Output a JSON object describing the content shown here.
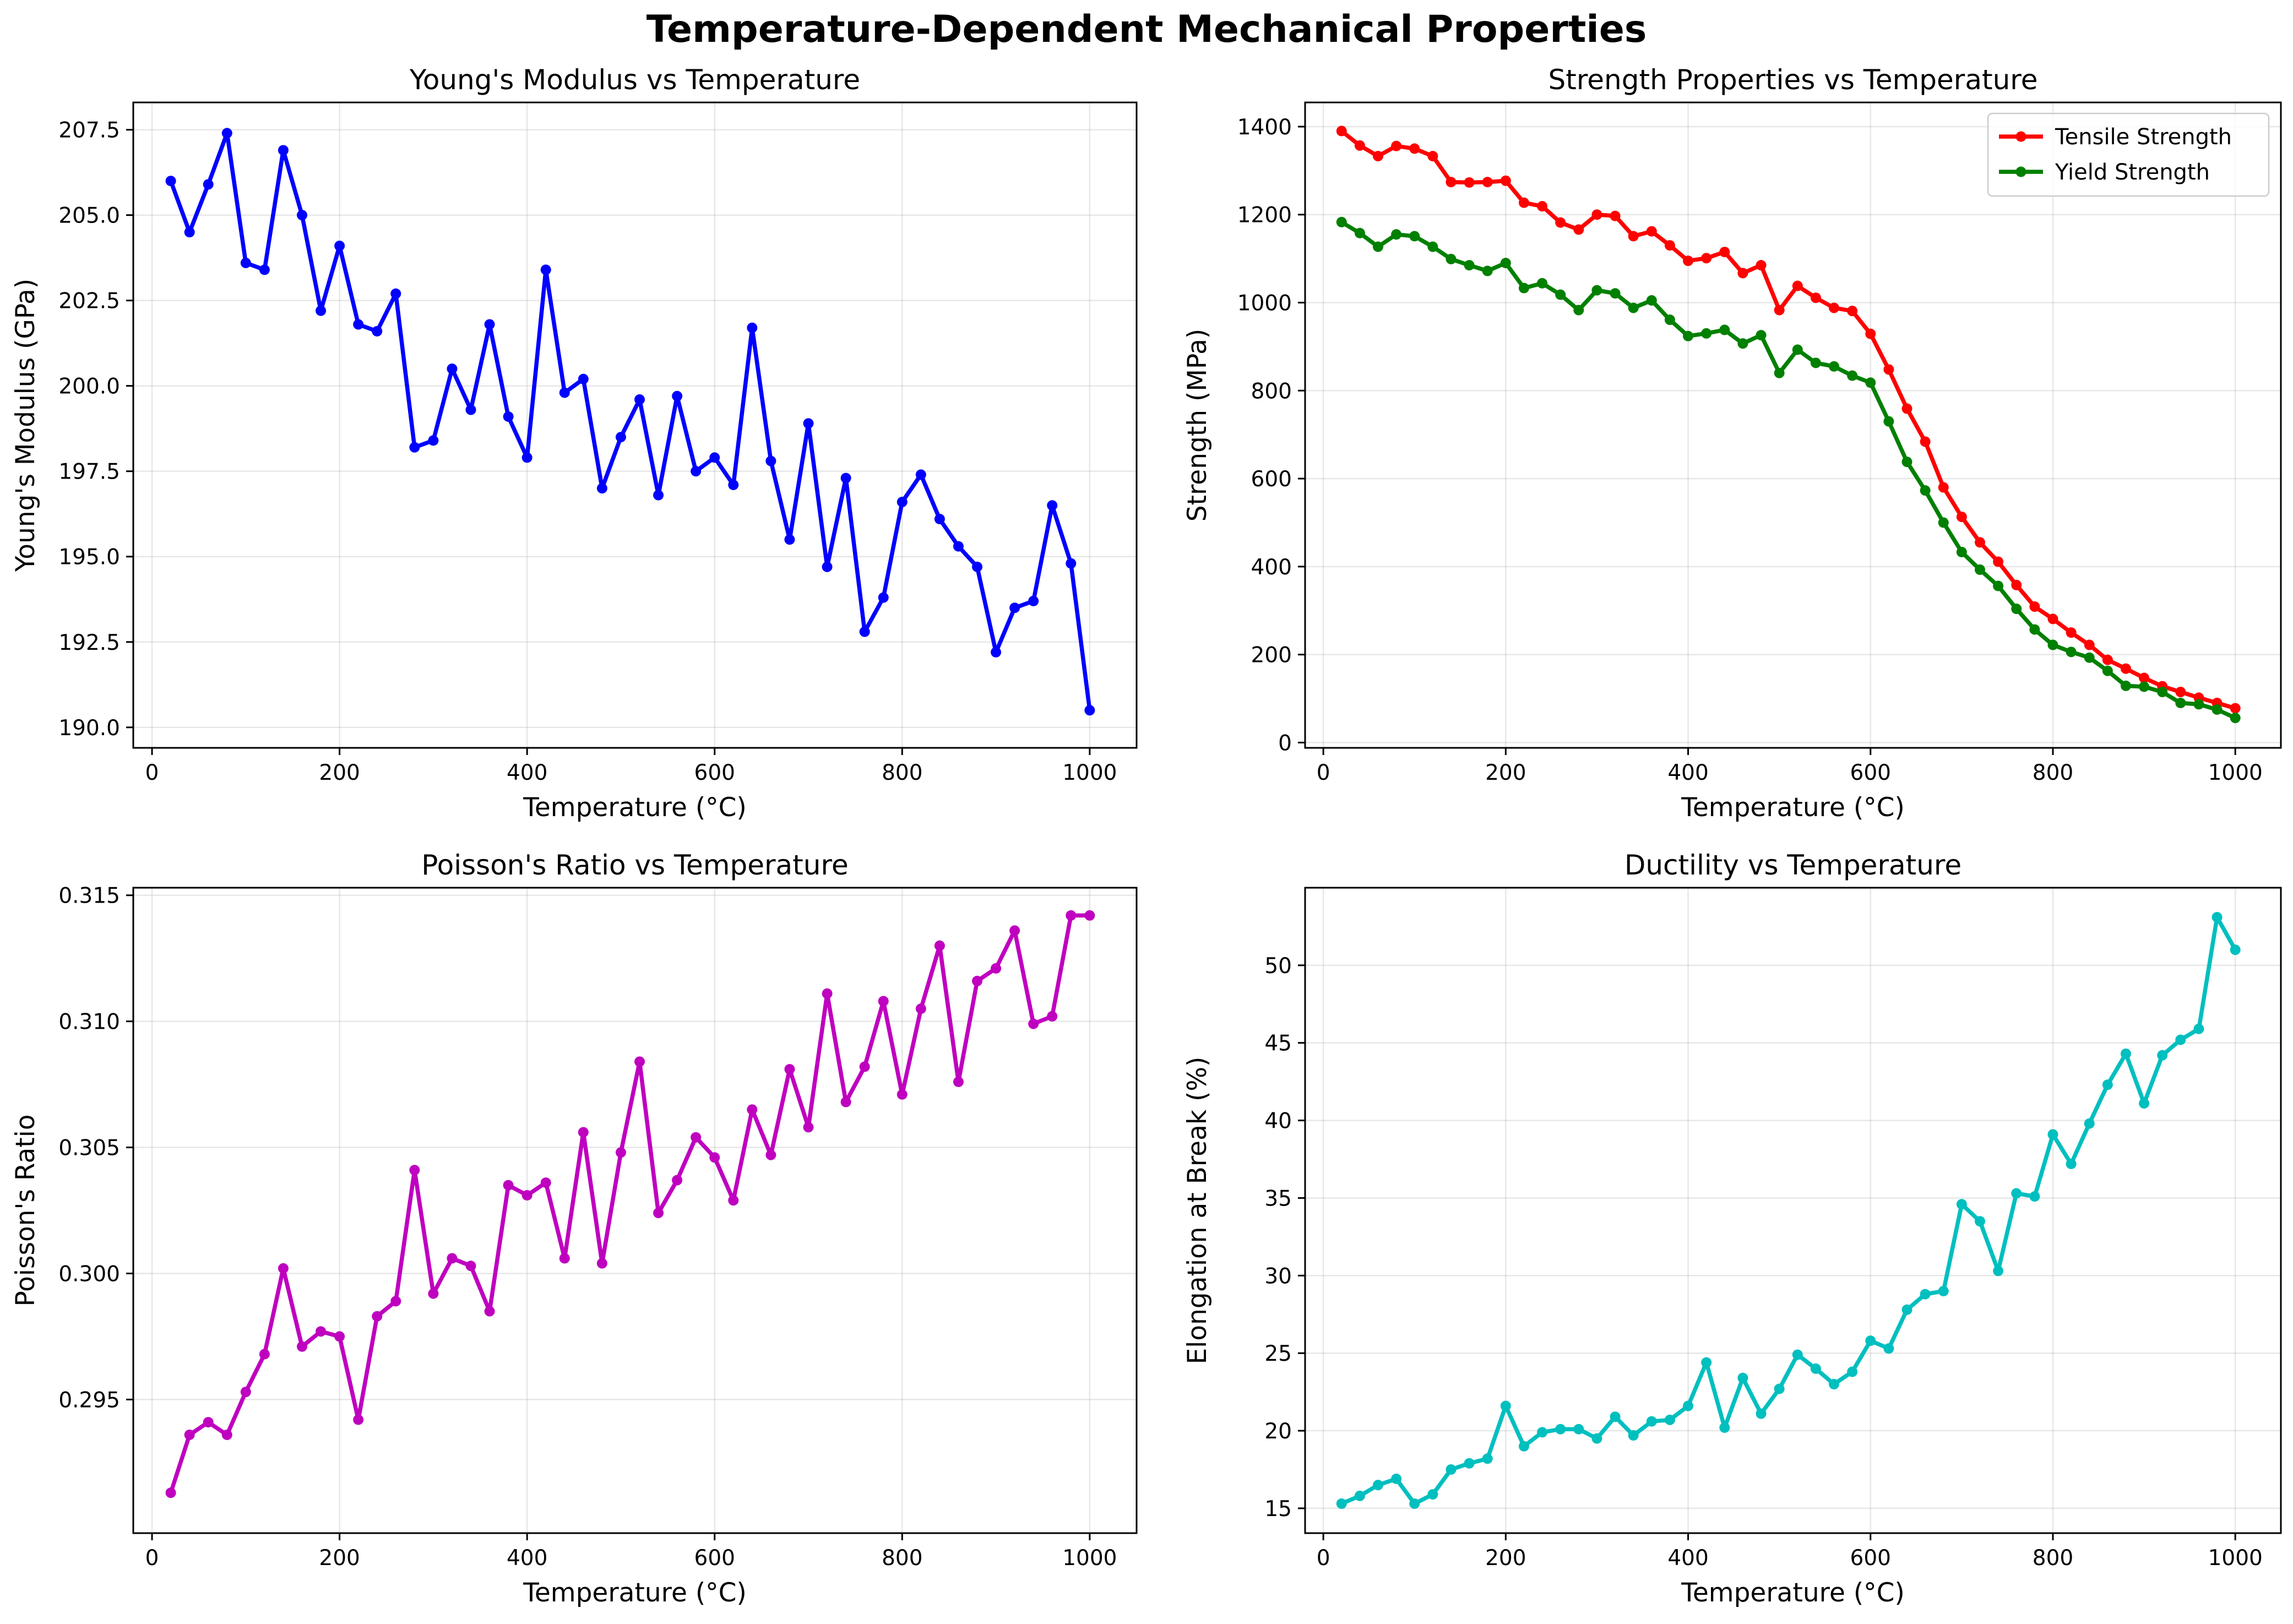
{
  "figure_title": "Temperature-Dependent Mechanical Properties",
  "chart_data": [
    {
      "type": "line",
      "title": "Young's Modulus vs Temperature",
      "xlabel": "Temperature (°C)",
      "ylabel": "Young's Modulus (GPa)",
      "xlim": [
        -20,
        1050
      ],
      "ylim": [
        189.4,
        208.3
      ],
      "xticks": [
        0,
        200,
        400,
        600,
        800,
        1000
      ],
      "yticks": [
        190.0,
        192.5,
        195.0,
        197.5,
        200.0,
        202.5,
        205.0,
        207.5
      ],
      "ytick_labels": [
        "190.0",
        "192.5",
        "195.0",
        "197.5",
        "200.0",
        "202.5",
        "205.0",
        "207.5"
      ],
      "grid": true,
      "legend": "none",
      "x": [
        20,
        40,
        60,
        80,
        100,
        120,
        140,
        160,
        180,
        200,
        220,
        240,
        260,
        280,
        300,
        320,
        340,
        360,
        380,
        400,
        420,
        440,
        460,
        480,
        500,
        520,
        540,
        560,
        580,
        600,
        620,
        640,
        660,
        680,
        700,
        720,
        740,
        760,
        780,
        800,
        820,
        840,
        860,
        880,
        900,
        920,
        940,
        960,
        980,
        1000
      ],
      "series": [
        {
          "color": "#0000ff",
          "values": [
            206.0,
            204.5,
            205.9,
            207.4,
            203.6,
            203.4,
            206.9,
            205.0,
            202.2,
            204.1,
            201.8,
            201.6,
            202.7,
            198.2,
            198.4,
            200.5,
            199.3,
            201.8,
            199.1,
            197.9,
            203.4,
            199.8,
            200.2,
            197.0,
            198.5,
            199.6,
            196.8,
            199.7,
            197.5,
            197.9,
            197.1,
            201.7,
            197.8,
            195.5,
            198.9,
            194.7,
            197.3,
            192.8,
            193.8,
            196.6,
            197.4,
            196.1,
            195.3,
            194.7,
            192.2,
            193.5,
            193.7,
            196.5,
            194.8,
            190.5
          ]
        }
      ]
    },
    {
      "type": "line",
      "title": "Strength Properties vs Temperature",
      "xlabel": "Temperature (°C)",
      "ylabel": "Strength (MPa)",
      "xlim": [
        -20,
        1050
      ],
      "ylim": [
        -12,
        1455
      ],
      "xticks": [
        0,
        200,
        400,
        600,
        800,
        1000
      ],
      "yticks": [
        0,
        200,
        400,
        600,
        800,
        1000,
        1200,
        1400
      ],
      "ytick_labels": [
        "0",
        "200",
        "400",
        "600",
        "800",
        "1000",
        "1200",
        "1400"
      ],
      "grid": true,
      "legend": "top-right",
      "x": [
        20,
        40,
        60,
        80,
        100,
        120,
        140,
        160,
        180,
        200,
        220,
        240,
        260,
        280,
        300,
        320,
        340,
        360,
        380,
        400,
        420,
        440,
        460,
        480,
        500,
        520,
        540,
        560,
        580,
        600,
        620,
        640,
        660,
        680,
        700,
        720,
        740,
        760,
        780,
        800,
        820,
        840,
        860,
        880,
        900,
        920,
        940,
        960,
        980,
        1000
      ],
      "series": [
        {
          "name": "Tensile Strength",
          "color": "#ff0000",
          "values": [
            1390,
            1357,
            1333,
            1356,
            1350,
            1333,
            1274,
            1273,
            1274,
            1277,
            1227,
            1219,
            1182,
            1166,
            1200,
            1197,
            1151,
            1162,
            1130,
            1095,
            1101,
            1115,
            1067,
            1085,
            983,
            1038,
            1011,
            988,
            981,
            929,
            848,
            759,
            684,
            580,
            513,
            455,
            411,
            358,
            309,
            281,
            250,
            222,
            188,
            168,
            147,
            128,
            115,
            102,
            90,
            78
          ]
        },
        {
          "name": "Yield Strength",
          "color": "#008000",
          "values": [
            1183,
            1158,
            1127,
            1155,
            1151,
            1127,
            1099,
            1085,
            1072,
            1090,
            1033,
            1044,
            1018,
            983,
            1028,
            1021,
            988,
            1005,
            961,
            924,
            930,
            938,
            907,
            926,
            840,
            893,
            863,
            855,
            834,
            818,
            730,
            638,
            573,
            500,
            433,
            393,
            356,
            304,
            257,
            222,
            206,
            193,
            163,
            129,
            127,
            115,
            90,
            87,
            75,
            56
          ]
        }
      ]
    },
    {
      "type": "line",
      "title": "Poisson's Ratio vs Temperature",
      "xlabel": "Temperature (°C)",
      "ylabel": "Poisson's Ratio",
      "xlim": [
        -20,
        1050
      ],
      "ylim": [
        0.2897,
        0.3153
      ],
      "xticks": [
        0,
        200,
        400,
        600,
        800,
        1000
      ],
      "yticks": [
        0.295,
        0.3,
        0.305,
        0.31,
        0.315
      ],
      "ytick_labels": [
        "0.295",
        "0.300",
        "0.305",
        "0.310",
        "0.315"
      ],
      "grid": true,
      "legend": "none",
      "x": [
        20,
        40,
        60,
        80,
        100,
        120,
        140,
        160,
        180,
        200,
        220,
        240,
        260,
        280,
        300,
        320,
        340,
        360,
        380,
        400,
        420,
        440,
        460,
        480,
        500,
        520,
        540,
        560,
        580,
        600,
        620,
        640,
        660,
        680,
        700,
        720,
        740,
        760,
        780,
        800,
        820,
        840,
        860,
        880,
        900,
        920,
        940,
        960,
        980,
        1000
      ],
      "series": [
        {
          "color": "#bf00bf",
          "values": [
            0.2913,
            0.2936,
            0.2941,
            0.2936,
            0.2953,
            0.2968,
            0.3002,
            0.2971,
            0.2977,
            0.2975,
            0.2942,
            0.2983,
            0.2989,
            0.3041,
            0.2992,
            0.3006,
            0.3003,
            0.2985,
            0.3035,
            0.3031,
            0.3036,
            0.3006,
            0.3056,
            0.3004,
            0.3048,
            0.3084,
            0.3024,
            0.3037,
            0.3054,
            0.3046,
            0.3029,
            0.3065,
            0.3047,
            0.3081,
            0.3058,
            0.3111,
            0.3068,
            0.3082,
            0.3108,
            0.3071,
            0.3105,
            0.313,
            0.3076,
            0.3116,
            0.3121,
            0.3136,
            0.3099,
            0.3102,
            0.3142,
            0.3142
          ]
        }
      ]
    },
    {
      "type": "line",
      "title": "Ductility vs Temperature",
      "xlabel": "Temperature (°C)",
      "ylabel": "Elongation at Break (%)",
      "xlim": [
        -20,
        1050
      ],
      "ylim": [
        13.4,
        55.0
      ],
      "xticks": [
        0,
        200,
        400,
        600,
        800,
        1000
      ],
      "yticks": [
        15,
        20,
        25,
        30,
        35,
        40,
        45,
        50
      ],
      "ytick_labels": [
        "15",
        "20",
        "25",
        "30",
        "35",
        "40",
        "45",
        "50"
      ],
      "grid": true,
      "legend": "none",
      "x": [
        20,
        40,
        60,
        80,
        100,
        120,
        140,
        160,
        180,
        200,
        220,
        240,
        260,
        280,
        300,
        320,
        340,
        360,
        380,
        400,
        420,
        440,
        460,
        480,
        500,
        520,
        540,
        560,
        580,
        600,
        620,
        640,
        660,
        680,
        700,
        720,
        740,
        760,
        780,
        800,
        820,
        840,
        860,
        880,
        900,
        920,
        940,
        960,
        980,
        1000
      ],
      "series": [
        {
          "color": "#00bfbf",
          "values": [
            15.3,
            15.8,
            16.5,
            16.9,
            15.3,
            15.9,
            17.5,
            17.9,
            18.2,
            21.6,
            19.0,
            19.9,
            20.1,
            20.1,
            19.5,
            20.9,
            19.7,
            20.6,
            20.7,
            21.6,
            24.4,
            20.2,
            23.4,
            21.1,
            22.7,
            24.9,
            24.0,
            23.0,
            23.8,
            25.8,
            25.3,
            27.8,
            28.8,
            29.0,
            34.6,
            33.5,
            30.3,
            35.3,
            35.1,
            39.1,
            37.2,
            39.8,
            42.3,
            44.3,
            41.1,
            44.2,
            45.2,
            45.9,
            53.1,
            51.0
          ]
        }
      ]
    }
  ]
}
